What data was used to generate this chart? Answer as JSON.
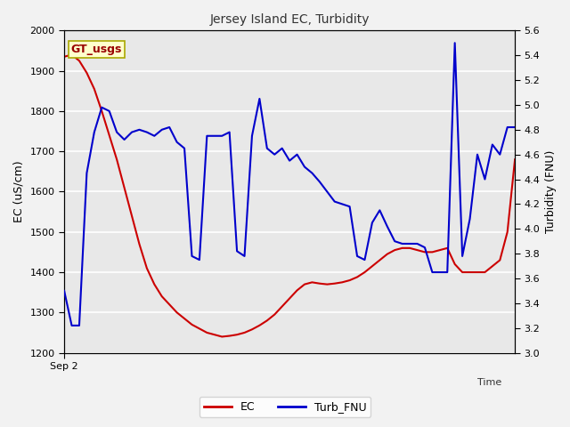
{
  "title": "Jersey Island EC, Turbidity",
  "xlabel_right": "Time",
  "xlabel_left": "Sep 2",
  "ylabel_left": "EC (uS/cm)",
  "ylabel_right": "Turbidity (FNU)",
  "ylim_left": [
    1200,
    2000
  ],
  "ylim_right": [
    3.0,
    5.6
  ],
  "yticks_left": [
    1200,
    1300,
    1400,
    1500,
    1600,
    1700,
    1800,
    1900,
    2000
  ],
  "yticks_right": [
    3.0,
    3.2,
    3.4,
    3.6,
    3.8,
    4.0,
    4.2,
    4.4,
    4.6,
    4.8,
    5.0,
    5.2,
    5.4,
    5.6
  ],
  "plot_bg_color": "#e8e8e8",
  "fig_bg_color": "#f2f2f2",
  "grid_color": "#ffffff",
  "label_box_text": "GT_usgs",
  "label_box_facecolor": "#ffffcc",
  "label_box_edgecolor": "#aaa800",
  "label_box_textcolor": "#990000",
  "legend_ec_label": "EC",
  "legend_turb_label": "Turb_FNU",
  "ec_color": "#cc0000",
  "turb_color": "#0000cc",
  "ec_x": [
    0,
    1,
    2,
    3,
    4,
    5,
    6,
    7,
    8,
    9,
    10,
    11,
    12,
    13,
    14,
    15,
    16,
    17,
    18,
    19,
    20,
    21,
    22,
    23,
    24,
    25,
    26,
    27,
    28,
    29,
    30,
    31,
    32,
    33,
    34,
    35,
    36,
    37,
    38,
    39,
    40,
    41,
    42,
    43,
    44,
    45,
    46,
    47,
    48,
    49,
    50,
    51,
    52,
    53,
    54,
    55,
    56,
    57,
    58,
    59,
    60
  ],
  "ec_y": [
    1935,
    1940,
    1925,
    1895,
    1855,
    1800,
    1740,
    1680,
    1610,
    1540,
    1470,
    1410,
    1370,
    1340,
    1320,
    1300,
    1285,
    1270,
    1260,
    1250,
    1245,
    1240,
    1242,
    1245,
    1250,
    1258,
    1268,
    1280,
    1295,
    1315,
    1335,
    1355,
    1370,
    1375,
    1372,
    1370,
    1372,
    1375,
    1380,
    1388,
    1400,
    1415,
    1430,
    1445,
    1455,
    1460,
    1460,
    1455,
    1450,
    1450,
    1455,
    1460,
    1420,
    1400,
    1400,
    1400,
    1400,
    1415,
    1430,
    1500,
    1680
  ],
  "turb_x": [
    0,
    1,
    2,
    3,
    4,
    5,
    6,
    7,
    8,
    9,
    10,
    11,
    12,
    13,
    14,
    15,
    16,
    17,
    18,
    19,
    20,
    21,
    22,
    23,
    24,
    25,
    26,
    27,
    28,
    29,
    30,
    31,
    32,
    33,
    34,
    35,
    36,
    37,
    38,
    39,
    40,
    41,
    42,
    43,
    44,
    45,
    46,
    47,
    48,
    49,
    50,
    51,
    52,
    53,
    54,
    55,
    56,
    57,
    58,
    59,
    60
  ],
  "turb_y": [
    3.5,
    3.22,
    3.22,
    4.45,
    4.78,
    4.98,
    4.95,
    4.78,
    4.72,
    4.78,
    4.8,
    4.78,
    4.75,
    4.8,
    4.82,
    4.7,
    4.65,
    3.78,
    3.75,
    4.75,
    4.75,
    4.75,
    4.78,
    3.82,
    3.78,
    4.75,
    5.05,
    4.65,
    4.6,
    4.65,
    4.55,
    4.6,
    4.5,
    4.45,
    4.38,
    4.3,
    4.22,
    4.2,
    4.18,
    3.78,
    3.75,
    4.05,
    4.15,
    4.02,
    3.9,
    3.88,
    3.88,
    3.88,
    3.85,
    3.65,
    3.65,
    3.65,
    5.5,
    3.78,
    4.08,
    4.6,
    4.4,
    4.68,
    4.6,
    4.82,
    4.82
  ]
}
